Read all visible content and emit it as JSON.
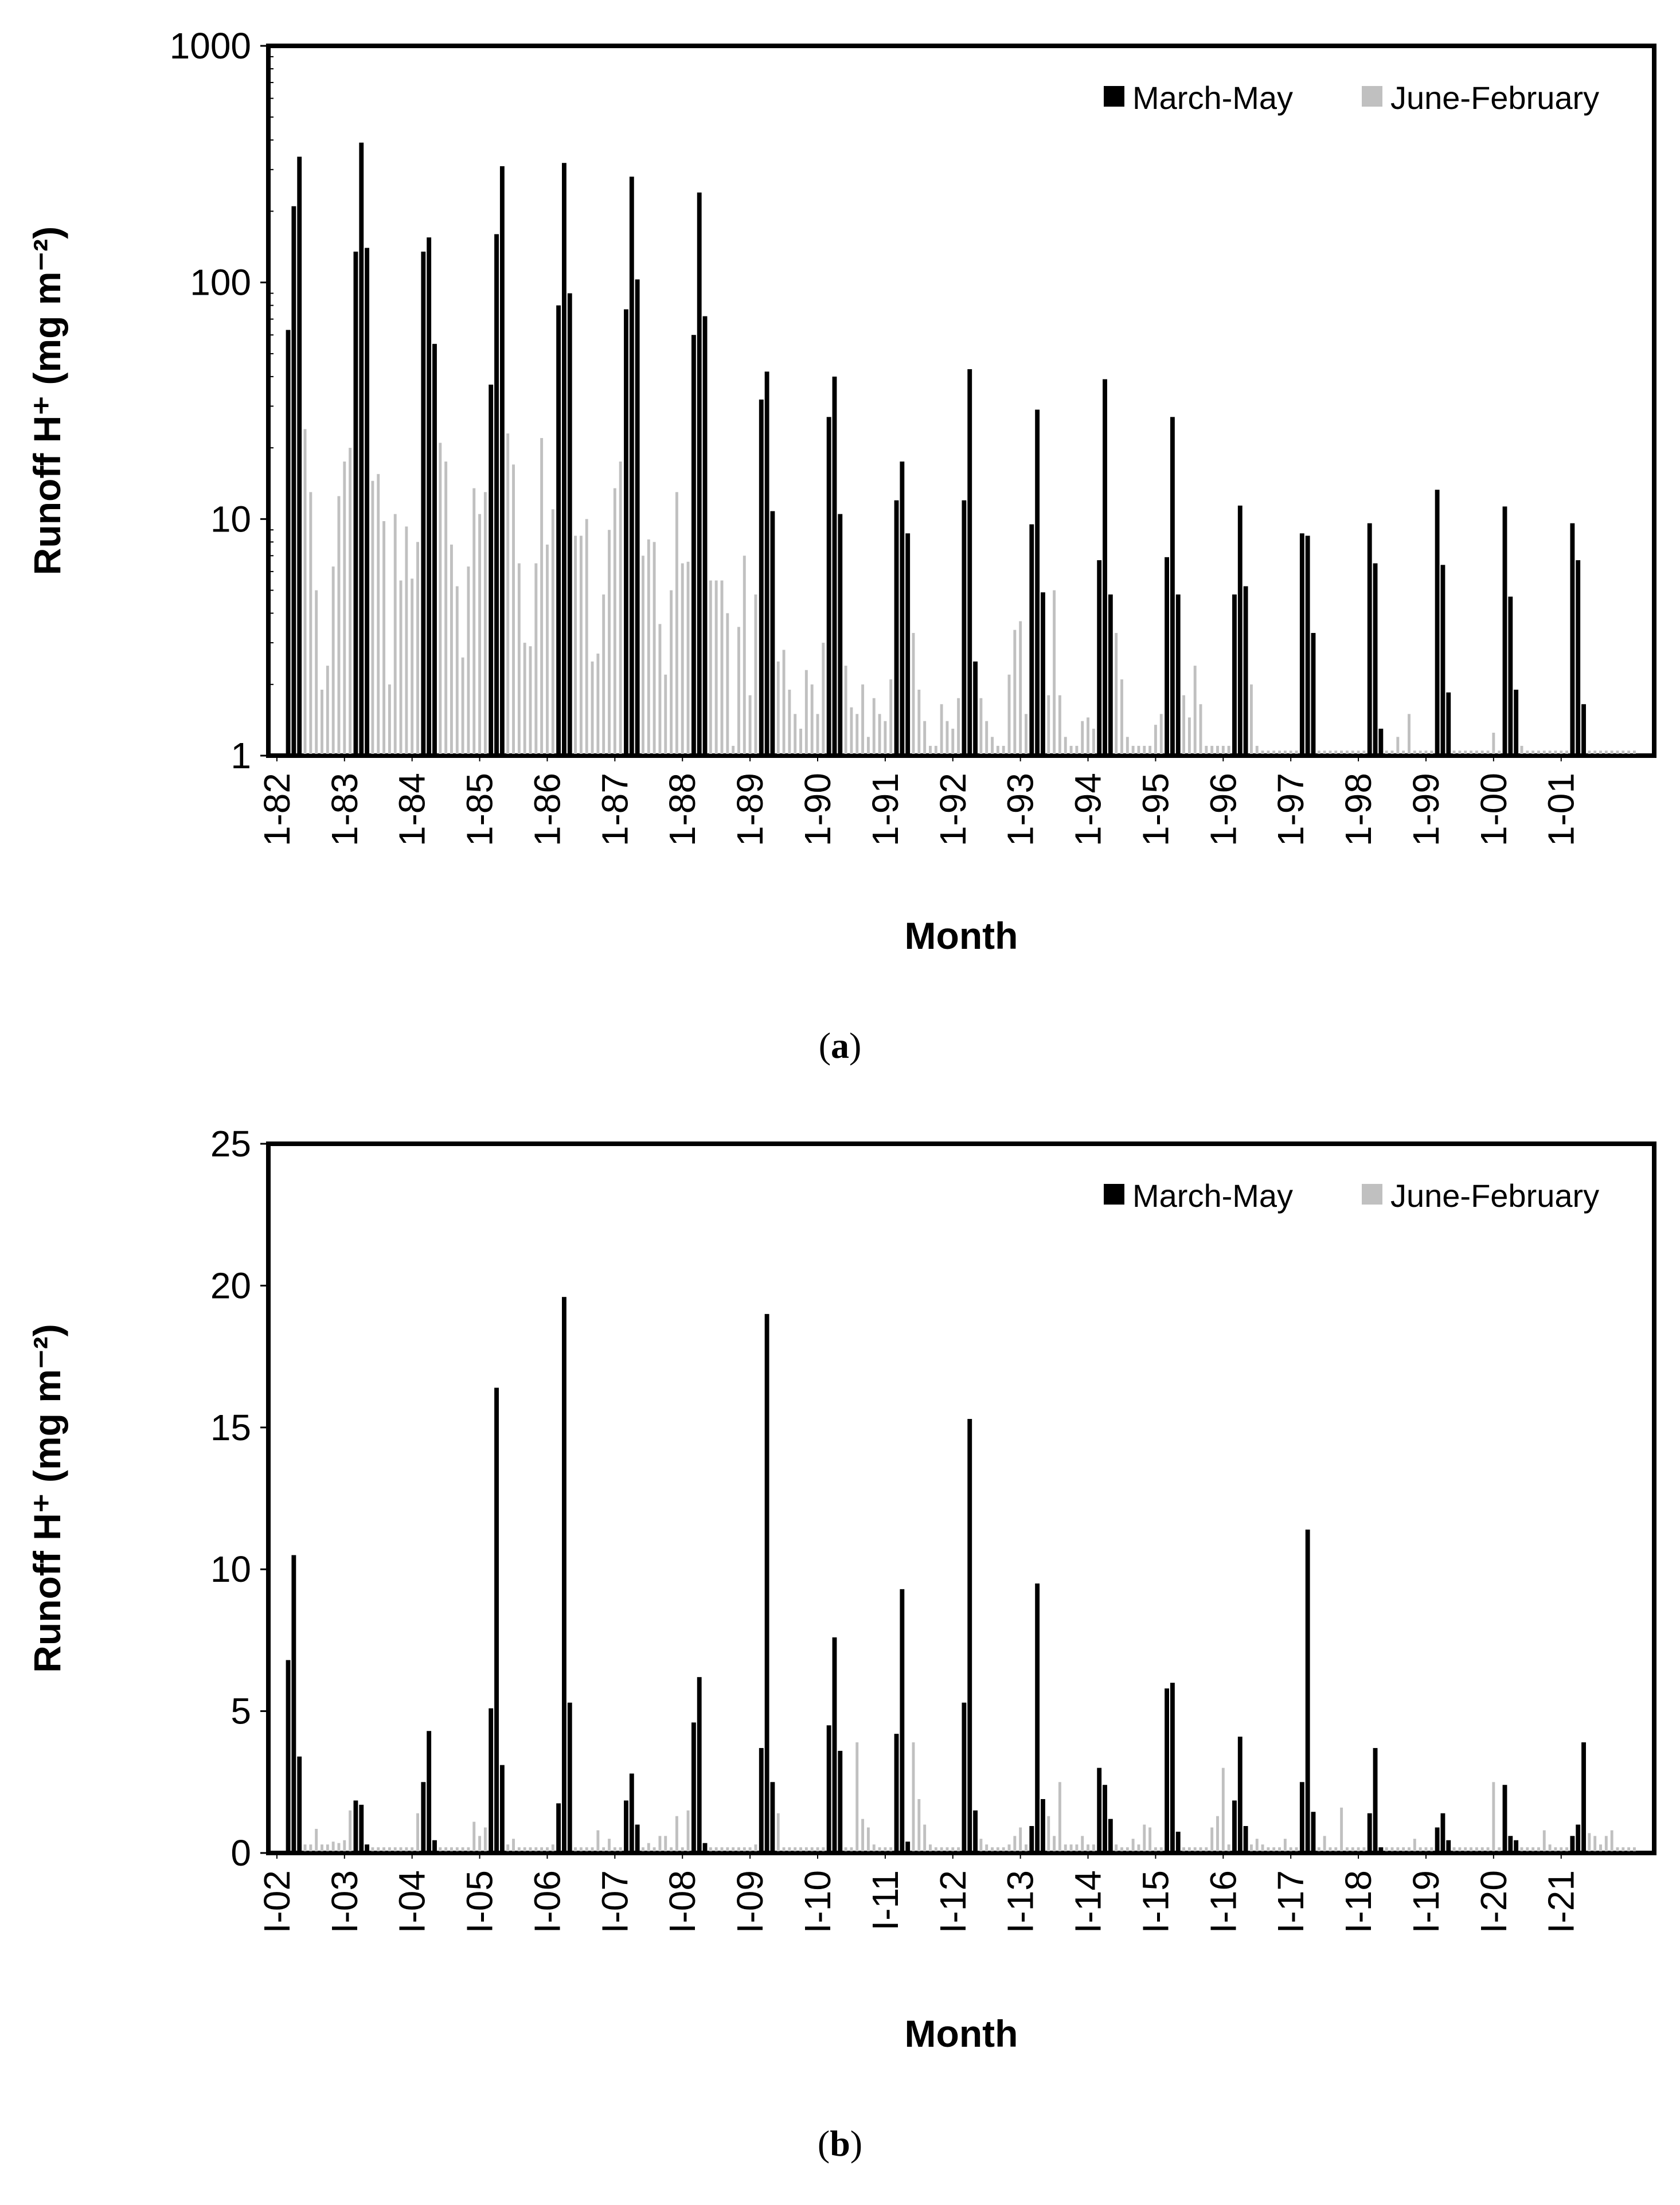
{
  "colors": {
    "march_may": "#000000",
    "june_february": "#c0c0c0",
    "frame": "#000000",
    "background": "#ffffff"
  },
  "legend": {
    "march_may": "March-May",
    "june_february": "June-February"
  },
  "chart_data": [
    {
      "panel_label": "(a)",
      "panel_letter": "a",
      "type": "bar",
      "scale": "log",
      "ylim": [
        1,
        1000
      ],
      "yticks": [
        "1",
        "10",
        "100",
        "1000"
      ],
      "ylabel": "Runoff H⁺ (mg m⁻²)",
      "xlabel": "Month",
      "legend_position": "top-right",
      "years": [
        "1-82",
        "1-83",
        "1-84",
        "1-85",
        "1-86",
        "1-87",
        "1-88",
        "1-89",
        "1-90",
        "1-91",
        "1-92",
        "1-93",
        "1-94",
        "1-95",
        "1-96",
        "1-97",
        "1-98",
        "1-99",
        "1-00",
        "1-01"
      ],
      "series": [
        {
          "name": "March-May",
          "values": [
            [
              63,
              210,
              340
            ],
            [
              135,
              390,
              140
            ],
            [
              135,
              155,
              55
            ],
            [
              37,
              160,
              310
            ],
            [
              80,
              320,
              90
            ],
            [
              77,
              280,
              103
            ],
            [
              60,
              240,
              72
            ],
            [
              32,
              42,
              10.8
            ],
            [
              27,
              40,
              10.5
            ],
            [
              12,
              17.5,
              8.7
            ],
            [
              12,
              43,
              2.5
            ],
            [
              9.5,
              29,
              4.9
            ],
            [
              6.7,
              39,
              4.8
            ],
            [
              6.9,
              27,
              4.8
            ],
            [
              4.8,
              11.4,
              5.2
            ],
            [
              8.7,
              8.5,
              3.3
            ],
            [
              9.6,
              6.5,
              1.3
            ],
            [
              13.3,
              6.4,
              1.85
            ],
            [
              11.3,
              4.7,
              1.9
            ],
            [
              9.6,
              6.7,
              1.65
            ]
          ]
        },
        {
          "name": "June-February",
          "values": [
            [
              24,
              13,
              5,
              1.9,
              2.4,
              6.3,
              12.5,
              17.5,
              20
            ],
            [
              14.5,
              15.5,
              9.8,
              2,
              10.5,
              5.5,
              9.3,
              5.6,
              8
            ],
            [
              21,
              17.5,
              7.8,
              5.2,
              2.6,
              6.3,
              13.5,
              10.5,
              13
            ],
            [
              23,
              17,
              6.5,
              3,
              2.9,
              6.5,
              22,
              7.8,
              11
            ],
            [
              8.5,
              8.5,
              10,
              2.5,
              2.7,
              4.8,
              9,
              13.5,
              17.5
            ],
            [
              7,
              8.2,
              8,
              3.6,
              2.2,
              5,
              13,
              6.5,
              6.6
            ],
            [
              5.5,
              5.5,
              5.5,
              4,
              1.1,
              3.5,
              7,
              1.8,
              4.8
            ],
            [
              2.5,
              2.8,
              1.9,
              1.5,
              1.3,
              2.3,
              2,
              1.5,
              3
            ],
            [
              2.4,
              1.6,
              1.5,
              2,
              1.2,
              1.75,
              1.5,
              1.4,
              2.1
            ],
            [
              3.3,
              1.9,
              1.4,
              1.1,
              1.1,
              1.65,
              1.4,
              1.3,
              1.75
            ],
            [
              1.75,
              1.4,
              1.2,
              1.1,
              1.1,
              2.2,
              3.4,
              3.7,
              1.5
            ],
            [
              1.8,
              5,
              1.8,
              1.2,
              1.1,
              1.1,
              1.4,
              1.45,
              1.3
            ],
            [
              3.3,
              2.1,
              1.2,
              1.1,
              1.1,
              1.1,
              1.1,
              1.35,
              1.5
            ],
            [
              1.8,
              1.45,
              2.4,
              1.65,
              1.1,
              1.1,
              1.1,
              1.1,
              1.1
            ],
            [
              2,
              1.1,
              1.05,
              1.05,
              1.05,
              1.05,
              1.05,
              1.05,
              1.05
            ],
            [
              1.05,
              1.05,
              1.05,
              1.05,
              1.05,
              1.05,
              1.05,
              1.05,
              1.05
            ],
            [
              1.05,
              1.05,
              1.2,
              1.05,
              1.5,
              1.05,
              1.05,
              1.05,
              1.05
            ],
            [
              1.05,
              1.05,
              1.05,
              1.05,
              1.05,
              1.05,
              1.05,
              1.25,
              1.05
            ],
            [
              1.1,
              1.05,
              1.05,
              1.05,
              1.05,
              1.05,
              1.05,
              1.05,
              1.05
            ],
            [
              1.05,
              1.05,
              1.05,
              1.05,
              1.05,
              1.05,
              1.05,
              1.05,
              1.05
            ]
          ]
        }
      ]
    },
    {
      "panel_label": "(b)",
      "panel_letter": "b",
      "type": "bar",
      "scale": "linear",
      "ylim": [
        0,
        25
      ],
      "yticks": [
        "0",
        "5",
        "10",
        "15",
        "20",
        "25"
      ],
      "ylabel": "Runoff H⁺ (mg m⁻²)",
      "xlabel": "Month",
      "legend_position": "top-right",
      "years": [
        "I-02",
        "I-03",
        "I-04",
        "I-05",
        "I-06",
        "I-07",
        "I-08",
        "I-09",
        "I-10",
        "I-11",
        "I-12",
        "I-13",
        "I-14",
        "I-15",
        "I-16",
        "I-17",
        "I-18",
        "I-19",
        "I-20",
        "I-21"
      ],
      "series": [
        {
          "name": "March-May",
          "values": [
            [
              6.8,
              10.5,
              3.4
            ],
            [
              1.85,
              1.7,
              0.3
            ],
            [
              2.5,
              4.3,
              0.45
            ],
            [
              5.1,
              16.4,
              3.1
            ],
            [
              1.75,
              19.6,
              5.3
            ],
            [
              1.85,
              2.8,
              1.0
            ],
            [
              4.6,
              6.2,
              0.35
            ],
            [
              3.7,
              19.0,
              2.5
            ],
            [
              4.5,
              7.6,
              3.6
            ],
            [
              4.2,
              9.3,
              0.4
            ],
            [
              5.3,
              15.3,
              1.5
            ],
            [
              0.95,
              9.5,
              1.9
            ],
            [
              3.0,
              2.4,
              1.2
            ],
            [
              5.8,
              6.0,
              0.75
            ],
            [
              1.85,
              4.1,
              0.95
            ],
            [
              2.5,
              11.4,
              1.45
            ],
            [
              1.4,
              3.7,
              0.2
            ],
            [
              0.9,
              1.4,
              0.45
            ],
            [
              2.4,
              0.6,
              0.45
            ],
            [
              0.6,
              1.0,
              3.9
            ]
          ]
        },
        {
          "name": "June-February",
          "values": [
            [
              0.3,
              0.3,
              0.85,
              0.3,
              0.3,
              0.4,
              0.35,
              0.45,
              1.5
            ],
            [
              0.2,
              0.2,
              0.2,
              0.2,
              0.2,
              0.2,
              0.2,
              0.2,
              1.4
            ],
            [
              0.2,
              0.2,
              0.2,
              0.2,
              0.2,
              0.2,
              1.1,
              0.6,
              0.9
            ],
            [
              0.3,
              0.5,
              0.2,
              0.2,
              0.2,
              0.2,
              0.2,
              0.2,
              0.3
            ],
            [
              0.2,
              0.2,
              0.2,
              0.2,
              0.8,
              0.2,
              0.5,
              0.2,
              0.2
            ],
            [
              0.2,
              0.35,
              0.2,
              0.6,
              0.6,
              0.2,
              1.3,
              0.2,
              1.5
            ],
            [
              0.2,
              0.2,
              0.2,
              0.2,
              0.2,
              0.2,
              0.2,
              0.2,
              0.3
            ],
            [
              1.4,
              0.2,
              0.2,
              0.2,
              0.2,
              0.2,
              0.2,
              0.2,
              0.2
            ],
            [
              0.2,
              0.2,
              3.9,
              1.2,
              0.9,
              0.3,
              0.2,
              0.2,
              0.2
            ],
            [
              3.9,
              1.9,
              1.0,
              0.3,
              0.2,
              0.2,
              0.2,
              0.2,
              0.2
            ],
            [
              0.5,
              0.3,
              0.2,
              0.2,
              0.2,
              0.3,
              0.6,
              0.9,
              0.3
            ],
            [
              1.3,
              0.6,
              2.5,
              0.3,
              0.3,
              0.3,
              0.6,
              0.3,
              0.3
            ],
            [
              0.3,
              0.2,
              0.2,
              0.5,
              0.3,
              1.0,
              0.9,
              0.2,
              0.2
            ],
            [
              0.2,
              0.2,
              0.2,
              0.2,
              0.2,
              0.9,
              1.3,
              3.0,
              0.3
            ],
            [
              0.3,
              0.5,
              0.3,
              0.2,
              0.2,
              0.2,
              0.5,
              0.2,
              0.2
            ],
            [
              0.2,
              0.6,
              0.2,
              0.2,
              1.6,
              0.2,
              0.2,
              0.2,
              0.2
            ],
            [
              0.2,
              0.2,
              0.2,
              0.2,
              0.2,
              0.5,
              0.2,
              0.2,
              0.2
            ],
            [
              0.2,
              0.2,
              0.2,
              0.2,
              0.2,
              0.2,
              0.2,
              2.5,
              0.2
            ],
            [
              0.2,
              0.2,
              0.2,
              0.2,
              0.8,
              0.3,
              0.2,
              0.2,
              0.2
            ],
            [
              0.7,
              0.6,
              0.3,
              0.6,
              0.8,
              0.2,
              0.2,
              0.2,
              0.2
            ]
          ]
        }
      ]
    }
  ]
}
